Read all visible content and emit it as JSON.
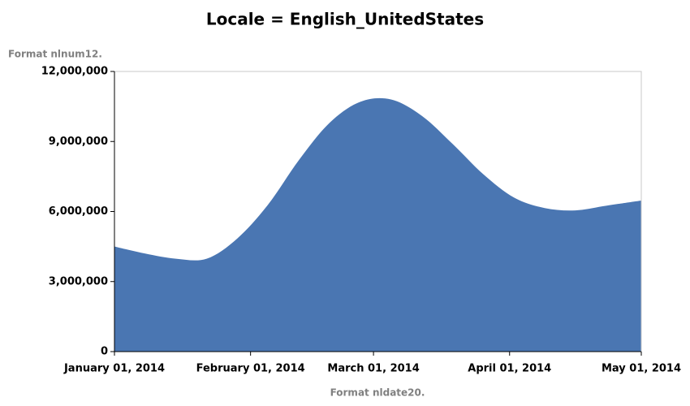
{
  "chart_data": {
    "type": "area",
    "title": "Locale = English_UnitedStates",
    "y_label": "Format nlnum12.",
    "x_label": "Format nldate20.",
    "color": "#4a76b2",
    "x": [
      "2014-01-01",
      "2014-01-08",
      "2014-01-15",
      "2014-01-22",
      "2014-01-29",
      "2014-02-05",
      "2014-02-12",
      "2014-02-19",
      "2014-02-26",
      "2014-03-05",
      "2014-03-12",
      "2014-03-19",
      "2014-03-26",
      "2014-04-02",
      "2014-04-09",
      "2014-04-16",
      "2014-04-23",
      "2014-05-01"
    ],
    "values": [
      4500000,
      4200000,
      3980000,
      3980000,
      4850000,
      6300000,
      8200000,
      9800000,
      10700000,
      10800000,
      10100000,
      8900000,
      7600000,
      6600000,
      6150000,
      6050000,
      6250000,
      6470000
    ],
    "xlim": [
      "2014-01-01",
      "2014-05-01"
    ],
    "xticks": [
      {
        "value": "2014-01-01",
        "label": "January 01, 2014"
      },
      {
        "value": "2014-02-01",
        "label": "February 01, 2014"
      },
      {
        "value": "2014-03-01",
        "label": "March 01, 2014"
      },
      {
        "value": "2014-04-01",
        "label": "April 01, 2014"
      },
      {
        "value": "2014-05-01",
        "label": "May 01, 2014"
      }
    ],
    "ylim": [
      0,
      12000000
    ],
    "yticks": [
      0,
      {
        "value": 3000000,
        "label": "3,000,000"
      },
      {
        "value": 6000000,
        "label": "6,000,000"
      },
      {
        "value": 9000000,
        "label": "9,000,000"
      },
      {
        "value": 12000000,
        "label": "12,000,000"
      }
    ]
  }
}
